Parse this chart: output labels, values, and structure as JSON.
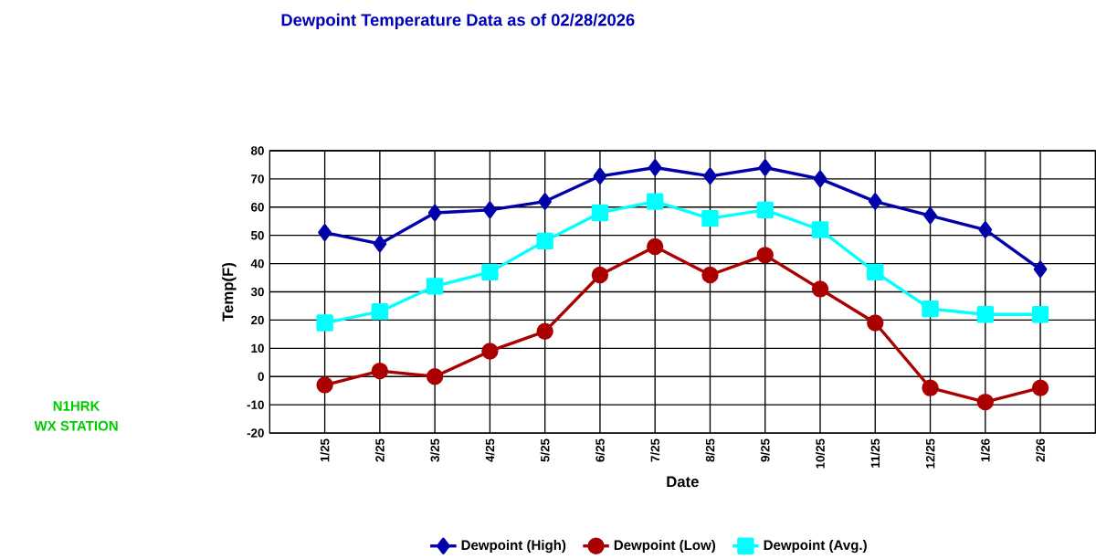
{
  "chart_data": {
    "type": "line",
    "title": "Dewpoint Temperature Data as of 02/28/2026",
    "xlabel": "Date",
    "ylabel": "Temp(F)",
    "categories": [
      "1/25",
      "2/25",
      "3/25",
      "4/25",
      "5/25",
      "6/25",
      "7/25",
      "8/25",
      "9/25",
      "10/25",
      "11/25",
      "12/25",
      "1/26",
      "2/26"
    ],
    "series": [
      {
        "name": "Dewpoint (High)",
        "color": "#0000aa",
        "marker": "diamond",
        "values": [
          51,
          47,
          58,
          59,
          62,
          71,
          74,
          71,
          74,
          70,
          62,
          57,
          52,
          38
        ]
      },
      {
        "name": "Dewpoint (Low)",
        "color": "#aa0000",
        "marker": "circle",
        "values": [
          -3,
          2,
          0,
          9,
          16,
          36,
          46,
          36,
          43,
          31,
          19,
          -4,
          -9,
          -4
        ]
      },
      {
        "name": "Dewpoint (Avg.)",
        "color": "#00ffff",
        "marker": "square",
        "values": [
          19,
          23,
          32,
          37,
          48,
          58,
          62,
          56,
          59,
          52,
          37,
          24,
          22,
          22
        ]
      }
    ],
    "ylim": [
      -20,
      80
    ],
    "yticks": [
      -20,
      -10,
      0,
      10,
      20,
      30,
      40,
      50,
      60,
      70,
      80
    ],
    "grid": true,
    "legend": "bottom",
    "line_style": "solid",
    "annotations": [
      "N1HRK",
      "WX STATION"
    ]
  }
}
